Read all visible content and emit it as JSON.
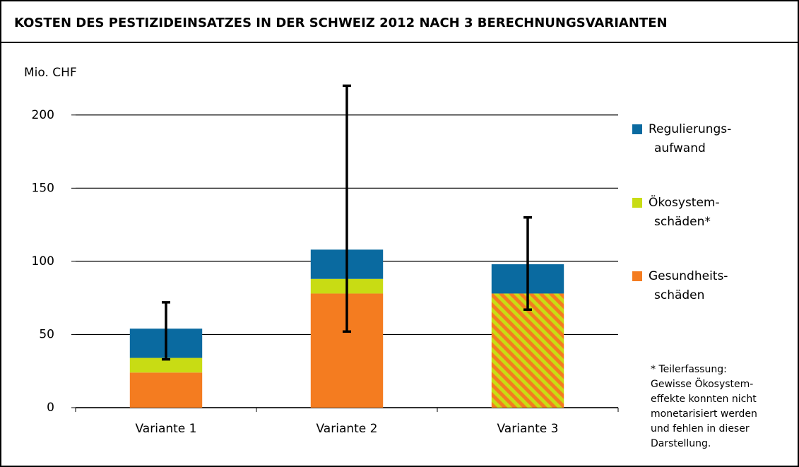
{
  "chart_data": {
    "type": "stacked_bar",
    "title": "KOSTEN DES PESTIZIDEINSATZES IN DER SCHWEIZ 2012 NACH 3 BERECHNUNGSVARIANTEN",
    "y_label": "Mio. CHF",
    "categories": [
      "Variante 1",
      "Variante 2",
      "Variante 3"
    ],
    "series": [
      {
        "name": [
          "Gesundheits-",
          "schäden"
        ],
        "color": "#f47c20",
        "values": [
          24,
          78,
          78
        ],
        "hatched": [
          false,
          false,
          true
        ],
        "hatch_color": "#c8dc14"
      },
      {
        "name": [
          "Ökosystem-",
          "schäden*"
        ],
        "color": "#c8dc14",
        "values": [
          10,
          10,
          null
        ]
      },
      {
        "name": [
          "Regulierungs-",
          "aufwand"
        ],
        "color": "#0a6aa0",
        "values": [
          20,
          20,
          20
        ]
      }
    ],
    "error_bars": {
      "low": [
        33,
        52,
        67
      ],
      "high": [
        72,
        220,
        130
      ],
      "color": "#000000"
    },
    "ylim": [
      0,
      225
    ],
    "yticks": [
      0,
      50,
      100,
      150,
      200
    ],
    "grid": true,
    "note": [
      "* Teilerfassung:",
      "Gewisse Ökosystem-",
      "effekte konnten nicht",
      "monetarisiert werden",
      "und fehlen in dieser",
      "Darstellung."
    ]
  }
}
